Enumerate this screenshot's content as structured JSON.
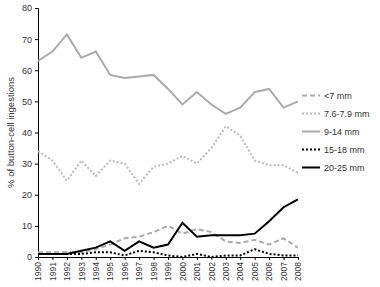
{
  "chart_data": {
    "type": "line",
    "y_label": "% of button-cell ingestions",
    "x": [
      1990,
      1991,
      1992,
      1993,
      1994,
      1995,
      1996,
      1997,
      1998,
      1999,
      2000,
      2001,
      2002,
      2003,
      2004,
      2005,
      2006,
      2007,
      2008
    ],
    "xlim": [
      1990,
      2008
    ],
    "xticks": [
      1990,
      1991,
      1992,
      1993,
      1994,
      1995,
      1996,
      1997,
      1998,
      1999,
      2000,
      2001,
      2002,
      2003,
      2004,
      2005,
      2006,
      2007,
      2008
    ],
    "ylim": [
      0,
      80
    ],
    "yticks": [
      0,
      10,
      20,
      30,
      40,
      50,
      60,
      70,
      80
    ],
    "grid": false,
    "legend": "right",
    "series": [
      {
        "name": "<7 mm",
        "color": "#aaaaaa",
        "line_style": "dashed",
        "values": [
          1.5,
          1.5,
          1.5,
          1.5,
          2.5,
          4,
          6,
          6.5,
          8,
          10,
          7.5,
          9,
          8,
          5,
          4.5,
          5.5,
          4,
          6,
          3
        ]
      },
      {
        "name": "7.6-7.9 mm",
        "color": "#bbbbbb",
        "line_style": "dotted",
        "values": [
          34,
          31,
          24.5,
          31,
          26,
          31,
          30,
          23.5,
          29,
          30,
          32.5,
          30,
          35,
          42,
          39,
          31,
          29.5,
          29.5,
          27
        ]
      },
      {
        "name": "9-14 mm",
        "color": "#aaaaaa",
        "line_style": "solid",
        "values": [
          63,
          66,
          71.5,
          64,
          66,
          58.5,
          57.5,
          58,
          58.5,
          54,
          49,
          53,
          49,
          46,
          48,
          53,
          54,
          48,
          50
        ]
      },
      {
        "name": "15-18 mm",
        "color": "#000000",
        "line_style": "dotted",
        "values": [
          1,
          1,
          1,
          1,
          1.5,
          1.5,
          0.5,
          2,
          1.5,
          0.5,
          0,
          1,
          0,
          0.5,
          0.5,
          2.5,
          1,
          0.5,
          0.5
        ]
      },
      {
        "name": "20-25 mm",
        "color": "#000000",
        "line_style": "solid",
        "values": [
          1,
          1,
          1,
          2,
          3,
          5,
          2,
          5,
          3,
          4,
          11,
          6.5,
          7,
          7,
          7,
          7.5,
          11.5,
          16,
          18.5
        ]
      }
    ]
  }
}
